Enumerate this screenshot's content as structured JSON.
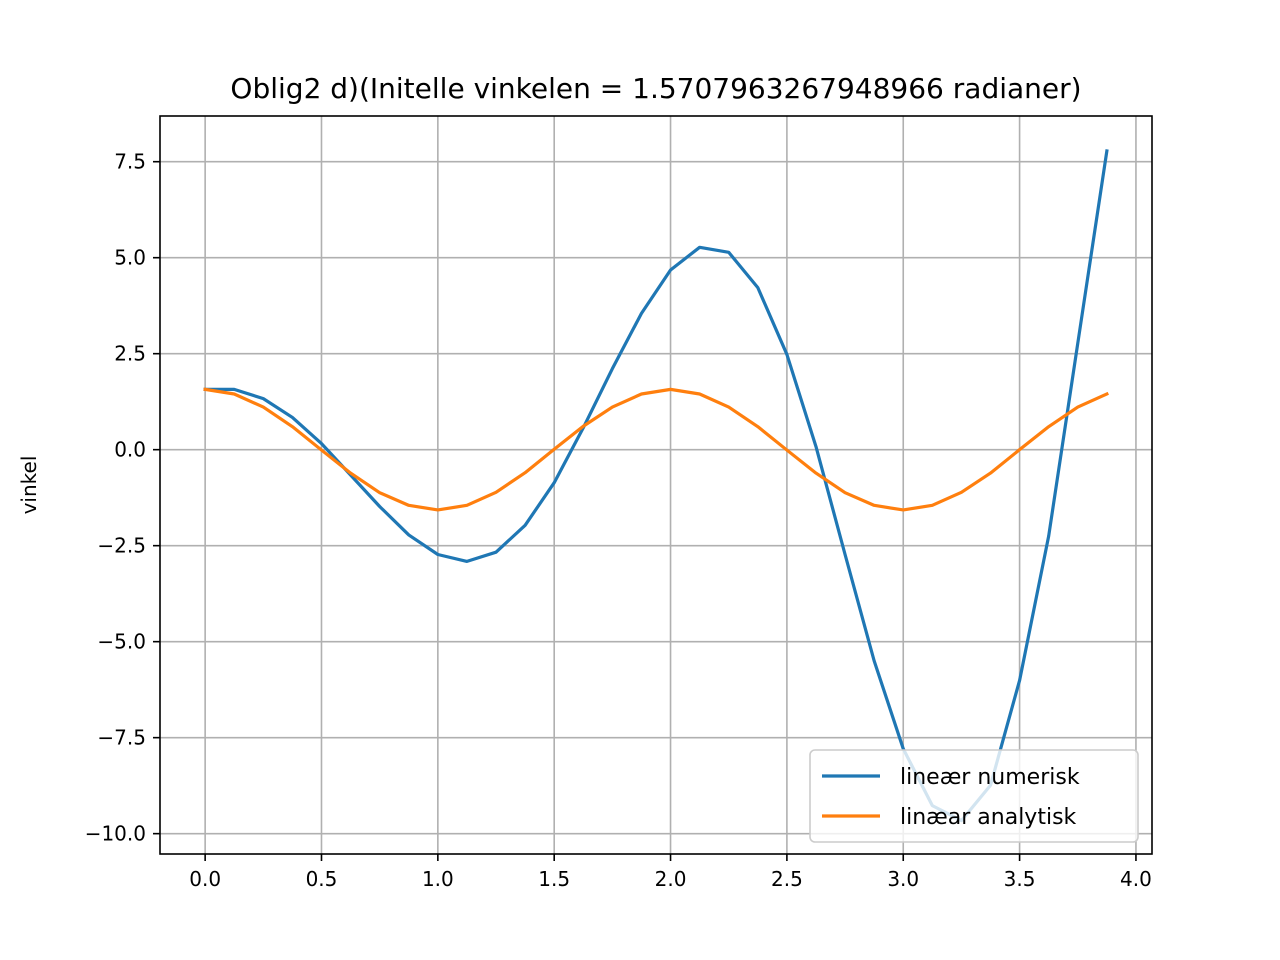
{
  "chart_data": {
    "type": "line",
    "title": "Oblig2 d)(Initelle vinkelen = 1.5707963267948966 radianer)",
    "xlabel": "",
    "ylabel": "vinkel",
    "xlim": [
      -0.194,
      4.069
    ],
    "ylim": [
      -10.53,
      8.69
    ],
    "x_ticks": [
      0.0,
      0.5,
      1.0,
      1.5,
      2.0,
      2.5,
      3.0,
      3.5,
      4.0
    ],
    "x_tick_labels": [
      "0.0",
      "0.5",
      "1.0",
      "1.5",
      "2.0",
      "2.5",
      "3.0",
      "3.5",
      "4.0"
    ],
    "y_ticks": [
      7.5,
      5.0,
      2.5,
      0.0,
      -2.5,
      -5.0,
      -7.5,
      -10.0
    ],
    "y_tick_labels": [
      "7.5",
      "5.0",
      "2.5",
      "0.0",
      "−2.5",
      "−5.0",
      "−7.5",
      "−10.0"
    ],
    "grid": true,
    "legend_position": "lower-right",
    "x": [
      0.0,
      0.125,
      0.25,
      0.375,
      0.5,
      0.625,
      0.75,
      0.875,
      1.0,
      1.125,
      1.25,
      1.375,
      1.5,
      1.625,
      1.75,
      1.875,
      2.0,
      2.125,
      2.25,
      2.375,
      2.5,
      2.625,
      2.75,
      2.875,
      3.0,
      3.125,
      3.25,
      3.375,
      3.5,
      3.625,
      3.75,
      3.875
    ],
    "series": [
      {
        "name": "lineær numerisk",
        "color": "#1f77b4",
        "values": [
          1.57,
          1.57,
          1.33,
          0.84,
          0.16,
          -0.66,
          -1.48,
          -2.22,
          -2.73,
          -2.91,
          -2.67,
          -1.97,
          -0.86,
          0.57,
          2.11,
          3.55,
          4.68,
          5.27,
          5.14,
          4.22,
          2.48,
          0.08,
          -2.73,
          -5.5,
          -7.79,
          -9.27,
          -9.66,
          -8.74,
          -6.01,
          -2.25,
          2.77,
          7.78
        ]
      },
      {
        "name": "linæar analytisk",
        "color": "#ff7f0e",
        "values": [
          1.57,
          1.45,
          1.11,
          0.6,
          -0.01,
          -0.61,
          -1.12,
          -1.45,
          -1.57,
          -1.45,
          -1.11,
          -0.6,
          0.01,
          0.61,
          1.11,
          1.45,
          1.57,
          1.45,
          1.11,
          0.6,
          -0.01,
          -0.61,
          -1.12,
          -1.45,
          -1.57,
          -1.45,
          -1.11,
          -0.61,
          0.0,
          0.6,
          1.11,
          1.45
        ]
      }
    ]
  }
}
